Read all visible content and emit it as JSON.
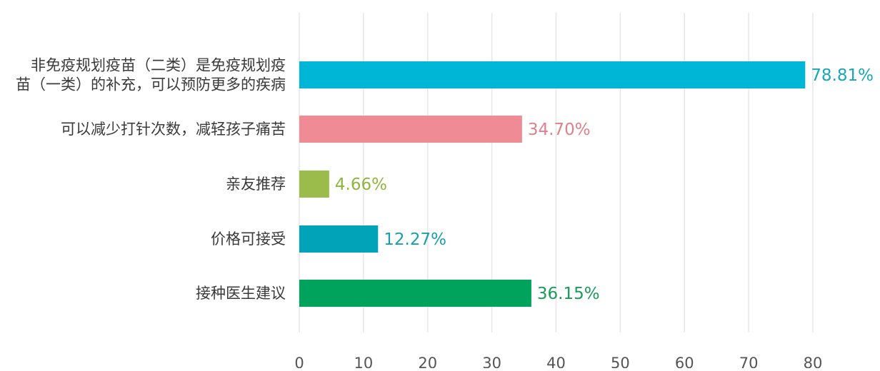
{
  "chart_data": {
    "type": "bar",
    "orientation": "horizontal",
    "categories": [
      [
        "非免疫规划疫苗（二类）是免疫规划疫",
        "苗（一类）的补充，可以预防更多的疾病"
      ],
      [
        "可以减少打针次数，减轻孩子痛苦"
      ],
      [
        "亲友推荐"
      ],
      [
        "价格可接受"
      ],
      [
        "接种医生建议"
      ]
    ],
    "values": [
      78.81,
      34.7,
      4.66,
      12.27,
      36.15
    ],
    "value_labels": [
      "78.81%",
      "34.70%",
      "4.66%",
      "12.27%",
      "36.15%"
    ],
    "colors": [
      "#00b6d6",
      "#ee8b94",
      "#9bbb4b",
      "#00a3b8",
      "#00a35c"
    ],
    "label_colors": [
      "#1aa6b5",
      "#e0808b",
      "#8fb53f",
      "#1a9dac",
      "#1a9a5a"
    ],
    "xlim": [
      0,
      80
    ],
    "x_ticks": [
      0,
      10,
      20,
      30,
      40,
      50,
      60,
      70,
      80
    ],
    "grid": true,
    "legend": "none"
  }
}
